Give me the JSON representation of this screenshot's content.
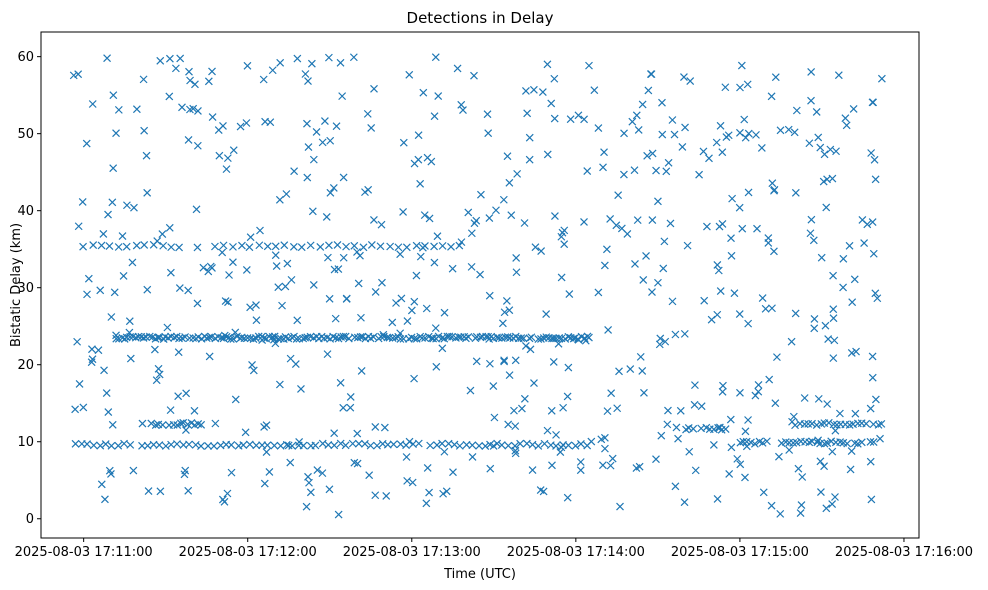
{
  "chart_data": {
    "type": "scatter",
    "title": "Detections in Delay",
    "xlabel": "Time (UTC)",
    "ylabel": "Bistatic Delay (km)",
    "x_unit": "seconds after 2025-08-03 17:11:00 UTC",
    "xlim": [
      -15.6,
      305.5
    ],
    "ylim": [
      -2.5,
      63.2
    ],
    "x_ticks": [
      {
        "value": 0,
        "label": "2025-08-03 17:11:00"
      },
      {
        "value": 60,
        "label": "2025-08-03 17:12:00"
      },
      {
        "value": 120,
        "label": "2025-08-03 17:13:00"
      },
      {
        "value": 180,
        "label": "2025-08-03 17:14:00"
      },
      {
        "value": 240,
        "label": "2025-08-03 17:15:00"
      },
      {
        "value": 300,
        "label": "2025-08-03 17:16:00"
      }
    ],
    "y_ticks": [
      {
        "value": 0,
        "label": "0"
      },
      {
        "value": 10,
        "label": "10"
      },
      {
        "value": 20,
        "label": "20"
      },
      {
        "value": 30,
        "label": "30"
      },
      {
        "value": 40,
        "label": "40"
      },
      {
        "value": 50,
        "label": "50"
      },
      {
        "value": 60,
        "label": "60"
      }
    ],
    "marker": "x",
    "color": "#1f77b4",
    "grid": false,
    "legend": "none",
    "bands": [
      {
        "y": 23.5,
        "x_start": 12,
        "x_end": 185,
        "step": 1.0,
        "note": "dense persistent track"
      },
      {
        "y": 9.6,
        "x_start": -3,
        "x_end": 185,
        "step": 2.2
      },
      {
        "y": 35.4,
        "x_start": 0,
        "x_end": 140,
        "step": 3.2
      },
      {
        "y": 12.3,
        "x_start": 25,
        "x_end": 44,
        "step": 1.3
      },
      {
        "y": 9.9,
        "x_start": 240,
        "x_end": 290,
        "step": 1.4
      },
      {
        "y": 12.3,
        "x_start": 262,
        "x_end": 292,
        "step": 1.5
      },
      {
        "y": 11.7,
        "x_start": 220,
        "x_end": 235,
        "step": 1.5
      }
    ],
    "scatter_count": 620,
    "x_range": [
      -5,
      292
    ],
    "y_range": [
      0.5,
      60
    ]
  }
}
